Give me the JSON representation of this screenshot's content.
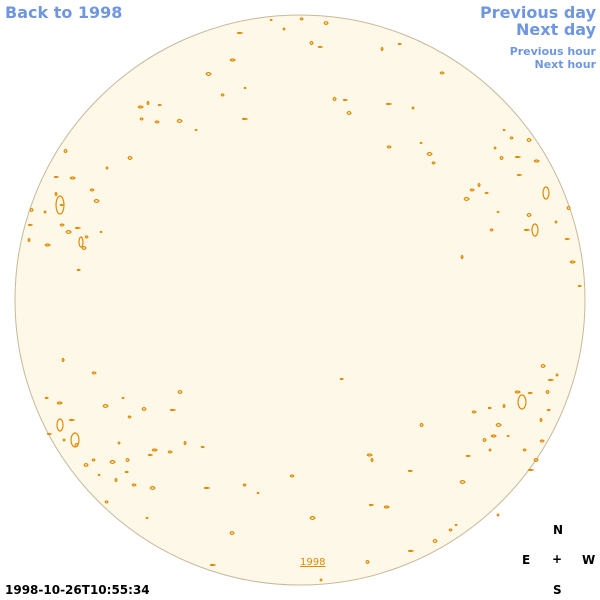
{
  "nav": {
    "back_label": "Back to 1998",
    "prev_day_label": "Previous day",
    "next_day_label": "Next day",
    "prev_hour_label": "Previous hour",
    "next_hour_label": "Next hour"
  },
  "disk": {
    "year_link_label": "1998",
    "disk_fill_color": "#fdf8e8",
    "contour_color": "#e08a00"
  },
  "timestamp": "1998-10-26T10:55:34",
  "compass": {
    "north": "N",
    "east": "E",
    "center": "+",
    "west": "W",
    "south": "S"
  },
  "colors": {
    "link": "#6f96e0",
    "contour": "#e08a00"
  }
}
